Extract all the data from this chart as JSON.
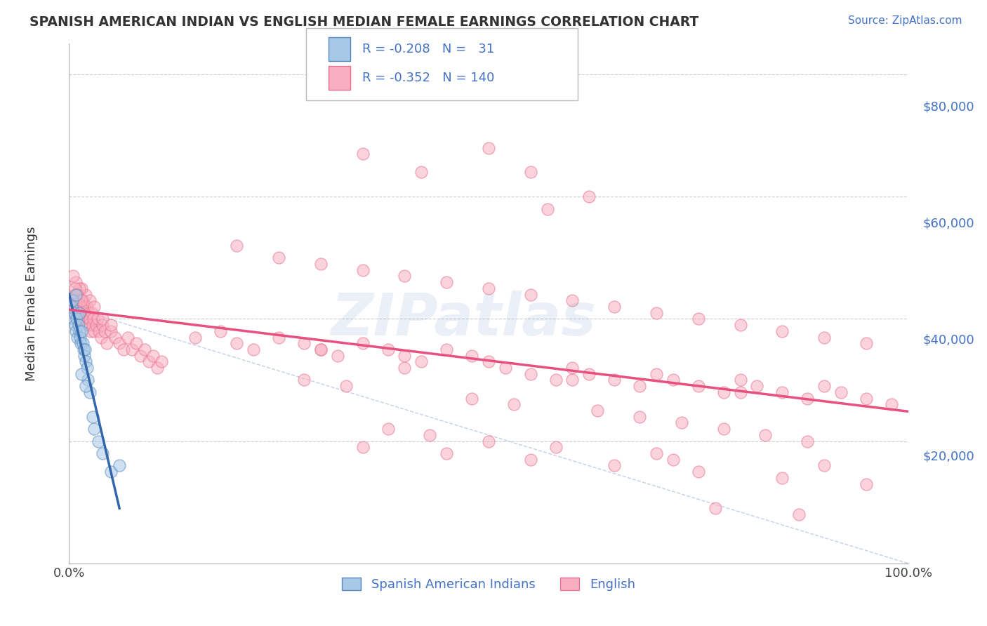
{
  "title": "SPANISH AMERICAN INDIAN VS ENGLISH MEDIAN FEMALE EARNINGS CORRELATION CHART",
  "source": "Source: ZipAtlas.com",
  "ylabel": "Median Female Earnings",
  "y_tick_labels": [
    "$20,000",
    "$40,000",
    "$60,000",
    "$80,000"
  ],
  "y_tick_values": [
    20000,
    40000,
    60000,
    80000
  ],
  "label1": "Spanish American Indians",
  "label2": "English",
  "color_blue_fill": "#a8c8e8",
  "color_blue_edge": "#5588bb",
  "color_blue_line": "#3366aa",
  "color_pink_fill": "#f8b0c0",
  "color_pink_edge": "#e87090",
  "color_pink_line": "#e85080",
  "color_diag": "#aabbdd",
  "background_color": "#ffffff",
  "grid_color": "#cccccc",
  "title_color": "#333333",
  "legend_text_color": "#4472c4",
  "watermark": "ZIPatlas",
  "blue_x": [
    0.3,
    0.5,
    0.6,
    0.7,
    0.8,
    0.9,
    1.0,
    1.1,
    1.2,
    1.3,
    1.4,
    1.5,
    1.6,
    1.7,
    1.8,
    1.9,
    2.0,
    2.1,
    2.2,
    2.5,
    2.8,
    3.0,
    3.5,
    4.0,
    5.0,
    6.0,
    0.4,
    0.8,
    1.2,
    2.0,
    1.5
  ],
  "blue_y": [
    42000,
    40000,
    41000,
    39000,
    38000,
    40000,
    37000,
    39000,
    38000,
    37000,
    36000,
    38000,
    36000,
    35000,
    34000,
    35000,
    33000,
    32000,
    30000,
    28000,
    24000,
    22000,
    20000,
    18000,
    15000,
    16000,
    43000,
    44000,
    41000,
    29000,
    31000
  ],
  "pink_x_cluster": [
    0.3,
    0.4,
    0.5,
    0.6,
    0.7,
    0.8,
    0.9,
    1.0,
    1.1,
    1.2,
    1.3,
    1.4,
    1.5,
    1.6,
    1.7,
    1.8,
    1.9,
    2.0,
    2.1,
    2.2,
    2.3,
    2.4,
    2.5,
    2.6,
    2.7,
    2.8,
    2.9,
    3.0,
    3.2,
    3.4,
    3.6,
    3.8,
    4.0,
    4.2,
    4.5,
    5.0,
    5.5,
    6.0,
    6.5,
    7.0,
    7.5,
    8.0,
    8.5,
    9.0,
    9.5,
    10.0,
    10.5,
    11.0,
    2.0,
    1.5,
    0.8,
    1.2,
    2.5,
    3.0,
    4.0,
    5.0,
    0.5,
    0.7,
    1.0,
    1.5
  ],
  "pink_y_cluster": [
    42000,
    43000,
    41000,
    44000,
    42000,
    43000,
    41000,
    44000,
    42000,
    41000,
    43000,
    42000,
    40000,
    43000,
    41000,
    42000,
    40000,
    41000,
    42000,
    40000,
    39000,
    41000,
    40000,
    38000,
    41000,
    39000,
    40000,
    38000,
    39000,
    40000,
    38000,
    37000,
    39000,
    38000,
    36000,
    38000,
    37000,
    36000,
    35000,
    37000,
    35000,
    36000,
    34000,
    35000,
    33000,
    34000,
    32000,
    33000,
    44000,
    45000,
    46000,
    45000,
    43000,
    42000,
    40000,
    39000,
    47000,
    45000,
    44000,
    43000
  ],
  "pink_x_spread": [
    15,
    18,
    20,
    22,
    25,
    28,
    30,
    32,
    35,
    38,
    40,
    42,
    45,
    48,
    50,
    52,
    55,
    58,
    60,
    62,
    65,
    68,
    70,
    72,
    75,
    78,
    80,
    82,
    85,
    88,
    90,
    92,
    95,
    98,
    25,
    30,
    35,
    40,
    45,
    50,
    55,
    60,
    65,
    70,
    75,
    80,
    85,
    90,
    95,
    20,
    28,
    33,
    48,
    53,
    63,
    68,
    73,
    78,
    83,
    88,
    35,
    45,
    55,
    65,
    75,
    85,
    95,
    40,
    60,
    80,
    50,
    70,
    90,
    30,
    38,
    43,
    58,
    72,
    77,
    87
  ],
  "pink_y_spread": [
    37000,
    38000,
    36000,
    35000,
    37000,
    36000,
    35000,
    34000,
    36000,
    35000,
    34000,
    33000,
    35000,
    34000,
    33000,
    32000,
    31000,
    30000,
    32000,
    31000,
    30000,
    29000,
    31000,
    30000,
    29000,
    28000,
    30000,
    29000,
    28000,
    27000,
    29000,
    28000,
    27000,
    26000,
    50000,
    49000,
    48000,
    47000,
    46000,
    45000,
    44000,
    43000,
    42000,
    41000,
    40000,
    39000,
    38000,
    37000,
    36000,
    52000,
    30000,
    29000,
    27000,
    26000,
    25000,
    24000,
    23000,
    22000,
    21000,
    20000,
    19000,
    18000,
    17000,
    16000,
    15000,
    14000,
    13000,
    32000,
    30000,
    28000,
    20000,
    18000,
    16000,
    35000,
    22000,
    21000,
    19000,
    17000,
    9000,
    8000
  ],
  "pink_outlier_x": [
    35,
    42,
    50,
    55,
    62,
    57
  ],
  "pink_outlier_y": [
    67000,
    64000,
    68000,
    64000,
    60000,
    58000
  ],
  "xlim": [
    0,
    100
  ],
  "ylim": [
    0,
    85000
  ],
  "diag_x0": 0,
  "diag_y0": 42000,
  "diag_x1": 100,
  "diag_y1": 0
}
